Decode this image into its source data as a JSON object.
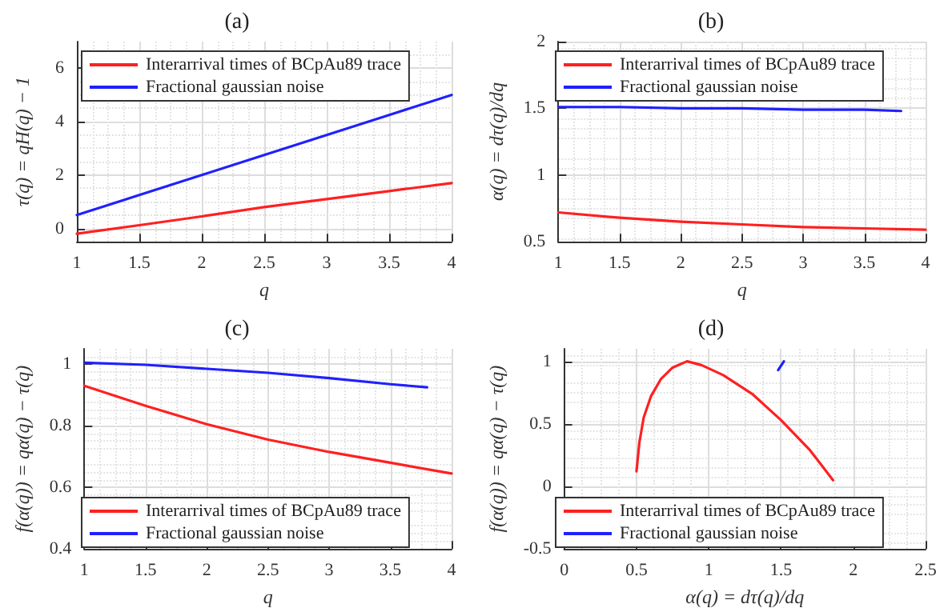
{
  "chart_data": [
    {
      "type": "line",
      "title": "(a)",
      "xlabel": "q",
      "ylabel": "τ(q) = qH(q) − 1",
      "x": [
        1,
        1.5,
        2,
        2.5,
        3,
        3.5,
        4
      ],
      "xlim": [
        1,
        4
      ],
      "xticks": [
        1,
        1.5,
        2,
        2.5,
        3,
        3.5,
        4
      ],
      "ylim": [
        -0.5,
        7
      ],
      "yticks": [
        0,
        2,
        4,
        6
      ],
      "grid": true,
      "legend": "top left",
      "marker": "none",
      "series": [
        {
          "name": "Interarrival times of BCpAu89 trace",
          "color": "#ff2020",
          "values": [
            -0.2,
            0.12,
            0.45,
            0.8,
            1.1,
            1.4,
            1.7
          ]
        },
        {
          "name": "Fractional gaussian noise",
          "color": "#2020ff",
          "values": [
            0.5,
            1.25,
            2.0,
            2.75,
            3.5,
            4.25,
            5.0
          ]
        }
      ]
    },
    {
      "type": "line",
      "title": "(b)",
      "xlabel": "q",
      "ylabel": "α(q) = dτ(q)/dq",
      "x": [
        1,
        1.5,
        2,
        2.5,
        3,
        3.5,
        4
      ],
      "xlim": [
        1,
        4
      ],
      "xticks": [
        1,
        1.5,
        2,
        2.5,
        3,
        3.5,
        4
      ],
      "ylim": [
        0.5,
        2
      ],
      "yticks": [
        0.5,
        1,
        1.5,
        2
      ],
      "grid": true,
      "legend": "top left",
      "marker": "none",
      "series": [
        {
          "name": "Interarrival times of BCpAu89 trace",
          "color": "#ff2020",
          "values": [
            0.72,
            0.68,
            0.65,
            0.63,
            0.61,
            0.6,
            0.59
          ]
        },
        {
          "name": "Fractional gaussian noise",
          "color": "#2020ff",
          "x": [
            1,
            1.5,
            2,
            2.5,
            3,
            3.5,
            3.8
          ],
          "values": [
            1.51,
            1.51,
            1.5,
            1.5,
            1.49,
            1.49,
            1.48
          ]
        }
      ]
    },
    {
      "type": "line",
      "title": "(c)",
      "xlabel": "q",
      "ylabel": "f(α(q)) = qα(q) − τ(q)",
      "x": [
        1,
        1.5,
        2,
        2.5,
        3,
        3.5,
        4
      ],
      "xlim": [
        1,
        4
      ],
      "xticks": [
        1,
        1.5,
        2,
        2.5,
        3,
        3.5,
        4
      ],
      "ylim": [
        0.4,
        1.05
      ],
      "yticks": [
        0.4,
        0.6,
        0.8,
        1
      ],
      "grid": true,
      "legend": "bottom left",
      "marker": "none",
      "series": [
        {
          "name": "Interarrival times of BCpAu89 trace",
          "color": "#ff2020",
          "values": [
            0.93,
            0.865,
            0.805,
            0.755,
            0.715,
            0.68,
            0.645
          ]
        },
        {
          "name": "Fractional gaussian noise",
          "color": "#2020ff",
          "x": [
            1,
            1.5,
            2,
            2.5,
            3,
            3.5,
            3.8
          ],
          "values": [
            1.005,
            0.998,
            0.985,
            0.972,
            0.955,
            0.935,
            0.925
          ]
        }
      ]
    },
    {
      "type": "line",
      "title": "(d)",
      "xlabel": "α(q) = dτ(q)/dq",
      "ylabel": "f(α(q)) = qα(q) − τ(q)",
      "xlim": [
        0,
        2.5
      ],
      "xticks": [
        0,
        0.5,
        1,
        1.5,
        2,
        2.5
      ],
      "ylim": [
        -0.5,
        1.1
      ],
      "yticks": [
        -0.5,
        0,
        0.5,
        1
      ],
      "grid": true,
      "legend": "bottom left",
      "marker": "none",
      "series": [
        {
          "name": "Interarrival times of BCpAu89 trace",
          "color": "#ff2020",
          "x": [
            0.5,
            0.52,
            0.55,
            0.6,
            0.67,
            0.75,
            0.85,
            0.95,
            1.1,
            1.3,
            1.5,
            1.7,
            1.86
          ],
          "values": [
            0.12,
            0.35,
            0.55,
            0.72,
            0.86,
            0.95,
            1.0,
            0.97,
            0.89,
            0.74,
            0.53,
            0.29,
            0.05
          ]
        },
        {
          "name": "Fractional gaussian noise",
          "color": "#2020ff",
          "x": [
            1.48,
            1.52
          ],
          "values": [
            0.93,
            1.0
          ]
        }
      ]
    }
  ]
}
